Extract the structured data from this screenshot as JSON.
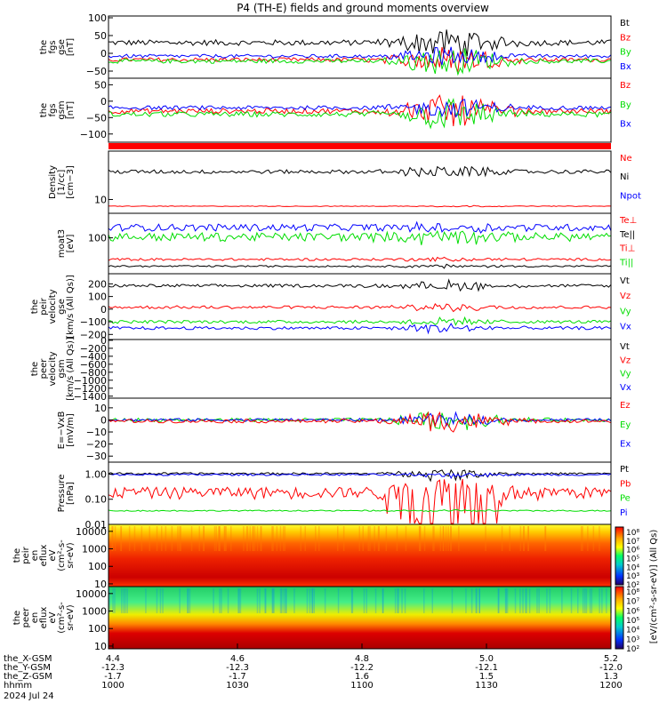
{
  "chart_data": {
    "title": "P4 (TH-E) fields and ground moments overview",
    "type": "line",
    "panels": [
      {
        "id": "fgs-gse",
        "ylabel": [
          "the",
          "fgs",
          "gse",
          "[nT]"
        ],
        "yticks": [
          "100",
          "50",
          "0",
          "−50"
        ],
        "ylim": [
          -70,
          105
        ],
        "legend": [
          {
            "label": "Bt",
            "color": "#000000"
          },
          {
            "label": "Bz",
            "color": "#ff0000"
          },
          {
            "label": "By",
            "color": "#00dd00"
          },
          {
            "label": "Bx",
            "color": "#0000ff"
          }
        ],
        "series": [
          {
            "color": "#000000",
            "base": 30,
            "amp": 8,
            "storm": 40
          },
          {
            "color": "#ff0000",
            "base": -18,
            "amp": 6,
            "storm": 40
          },
          {
            "color": "#00dd00",
            "base": -22,
            "amp": 6,
            "storm": 40
          },
          {
            "color": "#0000ff",
            "base": -8,
            "amp": 5,
            "storm": 25
          }
        ]
      },
      {
        "id": "fgs-gsm",
        "ylabel": [
          "the",
          "fgs",
          "gsm",
          "[nT]"
        ],
        "yticks": [
          "50",
          "0",
          "−50",
          "−100"
        ],
        "ylim": [
          -125,
          70
        ],
        "legend": [
          {
            "label": "Bz",
            "color": "#ff0000"
          },
          {
            "label": "By",
            "color": "#00dd00"
          },
          {
            "label": "Bx",
            "color": "#0000ff"
          }
        ],
        "series": [
          {
            "color": "#ff0000",
            "base": -30,
            "amp": 8,
            "storm": 50
          },
          {
            "color": "#00dd00",
            "base": -40,
            "amp": 8,
            "storm": 50
          },
          {
            "color": "#0000ff",
            "base": -20,
            "amp": 6,
            "storm": 30
          }
        ]
      },
      {
        "id": "density",
        "ylabel": [
          "Density",
          "[1/cc]",
          "[cm−3]"
        ],
        "yticks": [
          "10"
        ],
        "ylim": [
          6,
          60
        ],
        "log": true,
        "legend": [
          {
            "label": "Ne",
            "color": "#ff0000"
          },
          {
            "label": "Ni",
            "color": "#000000"
          },
          {
            "label": "Npot",
            "color": "#0000ff"
          }
        ],
        "series": [
          {
            "color": "#000000",
            "base": 28,
            "amp": 2,
            "storm": 6
          },
          {
            "color": "#ff0000",
            "base": 7.8,
            "amp": 0.1,
            "storm": 0.2
          }
        ]
      },
      {
        "id": "temperature",
        "ylabel": [
          "moat3",
          "[eV]"
        ],
        "yticks": [
          "100"
        ],
        "ylim": [
          20,
          300
        ],
        "log": true,
        "legend": [
          {
            "label": "Te⊥",
            "color": "#ff0000"
          },
          {
            "label": "Te||",
            "color": "#000000"
          },
          {
            "label": "Ti⊥",
            "color": "#ff0000"
          },
          {
            "label": "Ti||",
            "color": "#00dd00"
          }
        ],
        "series": [
          {
            "color": "#0000ff",
            "base": 160,
            "amp": 25,
            "storm": 30
          },
          {
            "color": "#00dd00",
            "base": 105,
            "amp": 20,
            "storm": 30
          },
          {
            "color": "#ff0000",
            "base": 38,
            "amp": 2,
            "storm": 3
          },
          {
            "color": "#000000",
            "base": 28,
            "amp": 1,
            "storm": 2
          }
        ]
      },
      {
        "id": "velocity-gse",
        "ylabel": [
          "the",
          "peir",
          "velocity",
          "gse",
          "[km/s (All Qs)]"
        ],
        "yticks": [
          "200",
          "100",
          "0",
          "−100",
          "−200"
        ],
        "ylim": [
          -240,
          280
        ],
        "legend": [
          {
            "label": "Vt",
            "color": "#000000"
          },
          {
            "label": "Vz",
            "color": "#ff0000"
          },
          {
            "label": "Vy",
            "color": "#00dd00"
          },
          {
            "label": "Vx",
            "color": "#0000ff"
          }
        ],
        "series": [
          {
            "color": "#000000",
            "base": 185,
            "amp": 12,
            "storm": 40
          },
          {
            "color": "#ff0000",
            "base": 15,
            "amp": 12,
            "storm": 30
          },
          {
            "color": "#00dd00",
            "base": -100,
            "amp": 12,
            "storm": 30
          },
          {
            "color": "#0000ff",
            "base": -150,
            "amp": 12,
            "storm": 40
          }
        ]
      },
      {
        "id": "velocity-gsm",
        "ylabel": [
          "the",
          "peer",
          "velocity",
          "gsm",
          "[km/s (All Qs)]"
        ],
        "yticks": [
          "0",
          "−200",
          "−400",
          "−600",
          "−800",
          "−1000",
          "−1200",
          "−1400"
        ],
        "ylim": [
          -1450,
          20
        ],
        "legend": [
          {
            "label": "Vt",
            "color": "#000000"
          },
          {
            "label": "Vz",
            "color": "#ff0000"
          },
          {
            "label": "Vy",
            "color": "#00dd00"
          },
          {
            "label": "Vx",
            "color": "#0000ff"
          }
        ],
        "series": []
      },
      {
        "id": "efield",
        "ylabel": [
          "E=−VxB",
          "[mV/m]"
        ],
        "yticks": [
          "10",
          "0",
          "−10",
          "−20",
          "−30"
        ],
        "ylim": [
          -35,
          18
        ],
        "legend": [
          {
            "label": "Ez",
            "color": "#ff0000"
          },
          {
            "label": "Ey",
            "color": "#00dd00"
          },
          {
            "label": "Ex",
            "color": "#0000ff"
          }
        ],
        "series": [
          {
            "color": "#00dd00",
            "base": 0,
            "amp": 1.5,
            "storm": 8
          },
          {
            "color": "#0000ff",
            "base": 0,
            "amp": 1.2,
            "storm": 5
          },
          {
            "color": "#ff0000",
            "base": -1,
            "amp": 1.5,
            "storm": 9
          }
        ]
      },
      {
        "id": "pressure",
        "ylabel": [
          "Pressure",
          "[nPa]"
        ],
        "yticks": [
          "1.00",
          "0.10",
          "0.01"
        ],
        "ylim": [
          0.01,
          3
        ],
        "log": true,
        "legend": [
          {
            "label": "Pt",
            "color": "#000000"
          },
          {
            "label": "Pb",
            "color": "#ff0000"
          },
          {
            "label": "Pe",
            "color": "#00dd00"
          },
          {
            "label": "Pi",
            "color": "#0000ff"
          }
        ],
        "series": [
          {
            "color": "#000000",
            "base": 1.05,
            "amp": 0.1,
            "storm": 0.5
          },
          {
            "color": "#0000ff",
            "base": 0.95,
            "amp": 0.08,
            "storm": 0.2
          },
          {
            "color": "#ff0000",
            "base": 0.2,
            "amp": 0.1,
            "storm": 0.6
          },
          {
            "color": "#00dd00",
            "base": 0.035,
            "amp": 0.002,
            "storm": 0.003
          }
        ]
      },
      {
        "id": "peir-spectrogram",
        "type": "heatmap",
        "ylabel": [
          "the",
          "peir",
          "en",
          "eflux",
          "eV",
          "(cm²-s-",
          "sr-eV)"
        ],
        "yticks": [
          "10000",
          "1000",
          "100",
          "10"
        ],
        "ylim": [
          7,
          25000
        ],
        "log": true
      },
      {
        "id": "peer-spectrogram",
        "type": "heatmap",
        "ylabel": [
          "the",
          "peer",
          "en",
          "eflux",
          "eV",
          "(cm²-s-",
          "sr-eV)"
        ],
        "yticks": [
          "10000",
          "1000",
          "100",
          "10"
        ],
        "ylim": [
          7,
          25000
        ],
        "log": true
      }
    ],
    "colorbar": {
      "label": "[eV/(cm²-s-sr-eV)] (All Qs)",
      "top_ticks": [
        "10⁸",
        "10⁷",
        "10⁶",
        "10⁵",
        "10⁴",
        "10³",
        "10²"
      ],
      "bottom_ticks": [
        "10⁸",
        "10⁷",
        "10⁶",
        "10⁵",
        "10⁴",
        "10³",
        "10²"
      ]
    },
    "xaxis": {
      "labels": [
        "the_X-GSM",
        "the_Y-GSM",
        "the_Z-GSM",
        "hhmm",
        "2024 Jul 24"
      ],
      "ticks": [
        {
          "x": "4.4",
          "y": "-12.3",
          "z": "-1.7",
          "t": "1000"
        },
        {
          "x": "4.6",
          "y": "-12.3",
          "z": "-1.7",
          "t": "1030"
        },
        {
          "x": "4.8",
          "y": "-12.2",
          "z": "1.6",
          "t": "1100"
        },
        {
          "x": "5.0",
          "y": "-12.1",
          "z": "1.5",
          "t": "1130"
        },
        {
          "x": "5.2",
          "y": "-12.0",
          "z": "1.3",
          "t": "1200"
        }
      ],
      "time_range": [
        "1000",
        "1200"
      ]
    }
  }
}
